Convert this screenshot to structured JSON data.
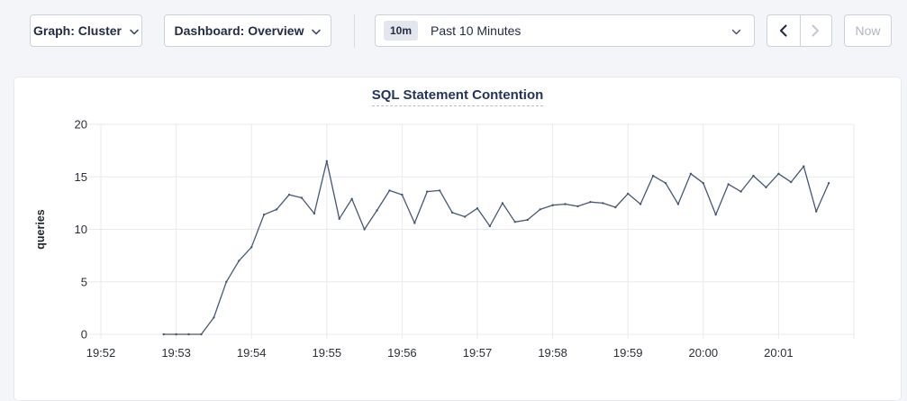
{
  "toolbar": {
    "graph_label": "Graph: Cluster",
    "dashboard_label": "Dashboard: Overview",
    "time_selector": {
      "badge": "10m",
      "label": "Past 10 Minutes"
    },
    "now_label": "Now"
  },
  "icons": {
    "dropdown": "chevron-down",
    "back": "chevron-left",
    "forward": "chevron-right"
  },
  "colors": {
    "page_bg": "#f4f5f9",
    "card_bg": "#ffffff",
    "accent_text": "#242c44",
    "title": "#24345c",
    "grid": "#e9eaee",
    "line": "#475872",
    "disabled": "#c4c9d4"
  },
  "chart_data": {
    "type": "line",
    "title": "SQL Statement Contention",
    "xlabel": "",
    "ylabel": "queries",
    "ylim": [
      0,
      20
    ],
    "y_ticks": [
      0,
      5,
      10,
      15,
      20
    ],
    "x_range": [
      "19:52:00",
      "20:02:00"
    ],
    "x_ticks": [
      "19:52",
      "19:53",
      "19:54",
      "19:55",
      "19:56",
      "19:57",
      "19:58",
      "19:59",
      "20:00",
      "20:01"
    ],
    "grid": true,
    "legend": "none",
    "series": [
      {
        "name": "queries",
        "x": [
          "19:52:50",
          "19:53:00",
          "19:53:10",
          "19:53:20",
          "19:53:30",
          "19:53:40",
          "19:53:50",
          "19:54:00",
          "19:54:10",
          "19:54:20",
          "19:54:30",
          "19:54:40",
          "19:54:50",
          "19:55:00",
          "19:55:10",
          "19:55:20",
          "19:55:30",
          "19:55:40",
          "19:55:50",
          "19:56:00",
          "19:56:10",
          "19:56:20",
          "19:56:30",
          "19:56:40",
          "19:56:50",
          "19:57:00",
          "19:57:10",
          "19:57:20",
          "19:57:30",
          "19:57:40",
          "19:57:50",
          "19:58:00",
          "19:58:10",
          "19:58:20",
          "19:58:30",
          "19:58:40",
          "19:58:50",
          "19:59:00",
          "19:59:10",
          "19:59:20",
          "19:59:30",
          "19:59:40",
          "19:59:50",
          "20:00:00",
          "20:00:10",
          "20:00:20",
          "20:00:30",
          "20:00:40",
          "20:00:50",
          "20:01:00",
          "20:01:10",
          "20:01:20",
          "20:01:30",
          "20:01:40"
        ],
        "values": [
          0,
          0,
          0,
          0,
          1.6,
          5.0,
          7.0,
          8.3,
          11.4,
          11.9,
          13.3,
          13.0,
          11.5,
          16.5,
          11.0,
          12.9,
          10.0,
          11.8,
          13.7,
          13.3,
          10.6,
          13.6,
          13.7,
          11.6,
          11.2,
          12.0,
          10.3,
          12.5,
          10.7,
          10.9,
          11.9,
          12.3,
          12.4,
          12.2,
          12.6,
          12.5,
          12.1,
          13.4,
          12.4,
          15.1,
          14.4,
          12.4,
          15.3,
          14.4,
          11.4,
          14.3,
          13.6,
          15.1,
          14.0,
          15.3,
          14.5,
          16.0,
          11.7,
          14.4
        ]
      }
    ]
  }
}
